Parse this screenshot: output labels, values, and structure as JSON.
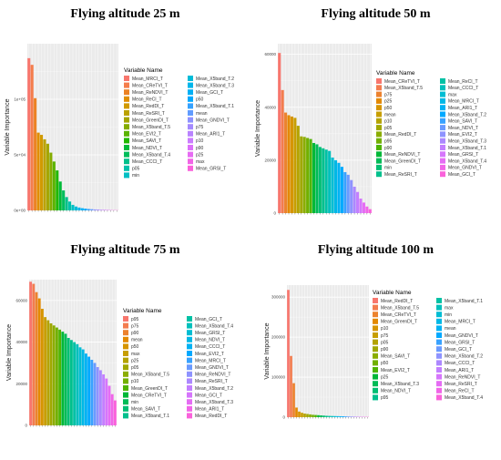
{
  "chart_data": [
    {
      "type": "bar",
      "title": "Flying altitude 25 m",
      "ylabel": "Variable Importance",
      "xlabel": "",
      "yticks": [
        "0e+00",
        "5e+04",
        "1e+05"
      ],
      "ylim": [
        0,
        150000
      ],
      "legend_title": "Variable Name",
      "legend_placement": "right",
      "categories": [
        "Mean_MRCI_T",
        "Mean_CReTVI_T",
        "Mean_ReNDVI_T",
        "Mean_ReCI_T",
        "Mean_RedDI_T",
        "Mean_ReSRI_T",
        "Mean_GreenDI_T",
        "Mean_X5band_T.5",
        "Mean_EVI2_T",
        "Mean_SAVI_T",
        "Mean_NDVI_T",
        "Mean_X5band_T.4",
        "Mean_CCCI_T",
        "p05",
        "min",
        "Mean_X5band_T.2",
        "Mean_X5band_T.3",
        "Mean_GCI_T",
        "p50",
        "Mean_X5band_T.1",
        "mean",
        "Mean_GNDVI_T",
        "p75",
        "Mean_ARI1_T",
        "p10",
        "p90",
        "p25",
        "max",
        "Mean_GRSI_T"
      ],
      "values": [
        137000,
        131000,
        101000,
        70000,
        68000,
        64000,
        60000,
        52000,
        44000,
        36000,
        26000,
        18000,
        12000,
        8000,
        5000,
        3500,
        2600,
        2000,
        1600,
        1300,
        1100,
        900,
        750,
        600,
        500,
        400,
        300,
        250,
        200
      ],
      "colors": [
        "#F8766D",
        "#F47D4C",
        "#EC8224",
        "#E08E00",
        "#D19A00",
        "#BBA200",
        "#A3A500",
        "#84AC00",
        "#5BB300",
        "#21B800",
        "#00BA38",
        "#00BD5C",
        "#00C08B",
        "#00C1AA",
        "#00BFC4",
        "#00BCD8",
        "#00B6EB",
        "#00B0F6",
        "#00A8FF",
        "#35A2FF",
        "#619CFF",
        "#8E92FF",
        "#A58AFF",
        "#B983FF",
        "#CB7CFF",
        "#DC71FA",
        "#E76BF3",
        "#F265E7",
        "#FA62DB"
      ]
    },
    {
      "type": "bar",
      "title": "Flying altitude 50 m",
      "ylabel": "Variable Importance",
      "xlabel": "",
      "yticks": [
        "0",
        "20000",
        "40000",
        "60000"
      ],
      "ylim": [
        0,
        64000
      ],
      "legend_title": "Variable Name",
      "legend_placement": "right",
      "categories": [
        "Mean_CReTVI_T",
        "Mean_X5band_T.5",
        "p75",
        "p25",
        "p50",
        "mean",
        "p10",
        "p05",
        "Mean_RedDI_T",
        "p95",
        "p90",
        "Mean_ReNDVI_T",
        "Mean_GreenDI_T",
        "min",
        "Mean_ReSRI_T",
        "Mean_ReCI_T",
        "Mean_CCCI_T",
        "max",
        "Mean_MRCI_T",
        "Mean_ARI1_T",
        "Mean_X5band_T.2",
        "Mean_SAVI_T",
        "Mean_NDVI_T",
        "Mean_EVI2_T",
        "Mean_X5band_T.3",
        "Mean_X5band_T.1",
        "Mean_GRSI_T",
        "Mean_X5band_T.4",
        "Mean_GNDVI_T",
        "Mean_GCI_T"
      ],
      "values": [
        60500,
        46500,
        38000,
        37000,
        36500,
        36000,
        33000,
        29000,
        28800,
        28400,
        28000,
        26500,
        26000,
        25000,
        24500,
        24000,
        23500,
        21000,
        20000,
        19000,
        17500,
        15500,
        14500,
        12500,
        10000,
        8000,
        5500,
        4000,
        2500,
        1500
      ],
      "colors": [
        "#F8766D",
        "#F37C4F",
        "#EC822E",
        "#E38900",
        "#D69500",
        "#C79E00",
        "#B4A300",
        "#A0A800",
        "#8BAD00",
        "#72B000",
        "#4FB400",
        "#00B838",
        "#00BB57",
        "#00BE73",
        "#00C08D",
        "#00C1A5",
        "#00C0BC",
        "#00BDD3",
        "#00B8E6",
        "#00B2F4",
        "#00A9FF",
        "#38A2FF",
        "#6A9AFF",
        "#8E93FF",
        "#AC88FF",
        "#C37FFF",
        "#D675FC",
        "#E56CF4",
        "#F165E8",
        "#FA62DB"
      ]
    },
    {
      "type": "bar",
      "title": "Flying altitude 75 m",
      "ylabel": "Variable Importance",
      "xlabel": "",
      "yticks": [
        "0",
        "20000",
        "40000",
        "60000"
      ],
      "ylim": [
        0,
        70000
      ],
      "legend_title": "Variable Name",
      "legend_placement": "right",
      "categories": [
        "p95",
        "p75",
        "p90",
        "mean",
        "p50",
        "max",
        "p25",
        "p05",
        "Mean_X5band_T.5",
        "p10",
        "Mean_GreenDI_T",
        "Mean_CReTVI_T",
        "min",
        "Mean_SAVI_T",
        "Mean_X5band_T.1",
        "Mean_GCI_T",
        "Mean_X5band_T.4",
        "Mean_GRSI_T",
        "Mean_NDVI_T",
        "Mean_CCCI_T",
        "Mean_EVI2_T",
        "Mean_MRCI_T",
        "Mean_GNDVI_T",
        "Mean_ReNDVI_T",
        "Mean_ReSRI_T",
        "Mean_X5band_T.2",
        "Mean_GCI_T",
        "Mean_X5band_T.3",
        "Mean_ARI1_T",
        "Mean_RedDI_T"
      ],
      "values": [
        69000,
        68000,
        64000,
        61000,
        56000,
        52000,
        50500,
        49000,
        48000,
        47000,
        46000,
        45000,
        44000,
        42000,
        41000,
        40000,
        39000,
        37500,
        36500,
        34500,
        33000,
        31500,
        30000,
        28000,
        26500,
        24500,
        22500,
        19000,
        15000,
        12000
      ],
      "colors": [
        "#F8766D",
        "#F37C4F",
        "#EC822E",
        "#E38900",
        "#D69500",
        "#C79E00",
        "#B4A300",
        "#A0A800",
        "#8BAD00",
        "#72B000",
        "#4FB400",
        "#00B838",
        "#00BB57",
        "#00BE73",
        "#00C08D",
        "#00C1A5",
        "#00C0BC",
        "#00BDD3",
        "#00B8E6",
        "#00B2F4",
        "#00A9FF",
        "#38A2FF",
        "#6A9AFF",
        "#8E93FF",
        "#AC88FF",
        "#C37FFF",
        "#D675FC",
        "#E56CF4",
        "#F165E8",
        "#FA62DB"
      ]
    },
    {
      "type": "bar",
      "title": "Flying altitude 100 m",
      "ylabel": "Variable Importance",
      "xlabel": "",
      "yticks": [
        "0",
        "100000",
        "200000",
        "300000"
      ],
      "ylim": [
        0,
        330000
      ],
      "legend_title": "Variable Name",
      "legend_placement": "left",
      "categories": [
        "Mean_RedDI_T",
        "Mean_X5band_T.5",
        "Mean_CReTVI_T",
        "Mean_GreenDI_T",
        "p10",
        "p75",
        "p05",
        "p90",
        "Mean_SAVI_T",
        "p50",
        "Mean_EVI2_T",
        "p25",
        "Mean_X5band_T.3",
        "Mean_NDVI_T",
        "p95",
        "Mean_X5band_T.1",
        "max",
        "min",
        "Mean_MRCI_T",
        "mean",
        "Mean_GNDVI_T",
        "Mean_GRSI_T",
        "Mean_GCI_T",
        "Mean_X5band_T.2",
        "Mean_CCCI_T",
        "Mean_ARI1_T",
        "Mean_ReNDVI_T",
        "Mean_ReSRI_T",
        "Mean_ReCI_T",
        "Mean_X5band_T.4"
      ],
      "values": [
        318000,
        153000,
        85000,
        24000,
        14000,
        11000,
        9000,
        8000,
        7000,
        6000,
        5500,
        5000,
        4500,
        4000,
        3500,
        3200,
        3000,
        2800,
        2600,
        2400,
        2200,
        2000,
        1800,
        1600,
        1400,
        1200,
        1000,
        900,
        800,
        700
      ],
      "colors": [
        "#F8766D",
        "#F37C4F",
        "#EC822E",
        "#E38900",
        "#D69500",
        "#C79E00",
        "#B4A300",
        "#A0A800",
        "#8BAD00",
        "#72B000",
        "#4FB400",
        "#00B838",
        "#00BB57",
        "#00BE73",
        "#00C08D",
        "#00C1A5",
        "#00C0BC",
        "#00BDD3",
        "#00B8E6",
        "#00B2F4",
        "#00A9FF",
        "#38A2FF",
        "#6A9AFF",
        "#8E93FF",
        "#AC88FF",
        "#C37FFF",
        "#D675FC",
        "#E56CF4",
        "#F165E8",
        "#FA62DB"
      ]
    }
  ]
}
